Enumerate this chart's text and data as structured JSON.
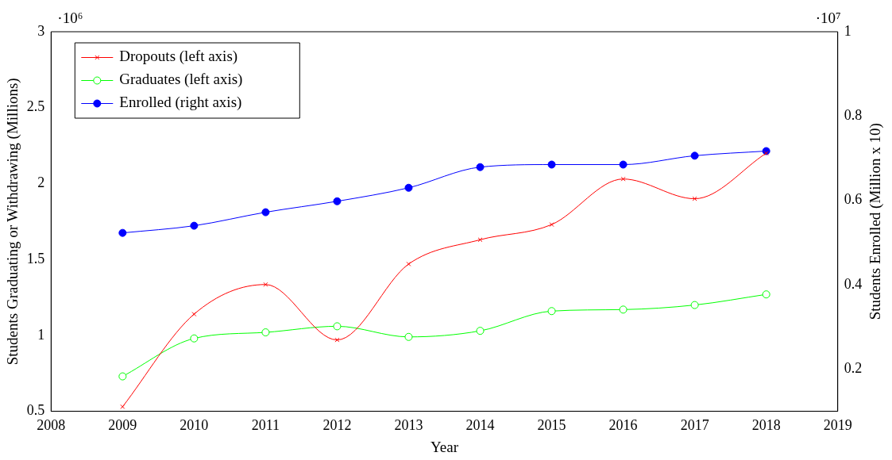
{
  "chart_data": {
    "type": "line",
    "xlabel": "Year",
    "ylabel": "Students Graduating or Withdrawing (Millions)",
    "y2label": "Students Enrolled (Million x 10)",
    "x": [
      2009,
      2010,
      2011,
      2012,
      2013,
      2014,
      2015,
      2016,
      2017,
      2018
    ],
    "series": [
      {
        "name": "Dropouts (left axis)",
        "color": "#ff0000",
        "marker": "cross",
        "values": [
          0.53,
          1.14,
          1.335,
          0.97,
          1.47,
          1.63,
          1.73,
          2.03,
          1.9,
          2.2
        ]
      },
      {
        "name": "Graduates (left axis)",
        "color": "#00ff00",
        "marker": "circle",
        "values": [
          0.73,
          0.98,
          1.02,
          1.06,
          0.99,
          1.03,
          1.16,
          1.17,
          1.2,
          1.27
        ]
      },
      {
        "name": "Enrolled (right axis)",
        "color": "#0000ff",
        "marker": "circle",
        "axis": "y2",
        "values": [
          0.523,
          0.54,
          0.572,
          0.598,
          0.63,
          0.679,
          0.685,
          0.685,
          0.706,
          0.717
        ]
      }
    ],
    "xlim": [
      2008,
      2019
    ],
    "xticks": [
      2008,
      2009,
      2010,
      2011,
      2012,
      2013,
      2014,
      2015,
      2016,
      2017,
      2018,
      2019
    ],
    "ylim": [
      0.5,
      3
    ],
    "yticks": [
      0.5,
      1,
      1.5,
      2,
      2.5,
      3
    ],
    "y2lim": [
      0.1,
      1
    ],
    "y2ticks": [
      0.2,
      0.4,
      0.6,
      0.8,
      1
    ],
    "annotations": [
      "·10⁶",
      "·10⁷"
    ],
    "legend": "top left",
    "grid": false,
    "line_style": "solid"
  }
}
